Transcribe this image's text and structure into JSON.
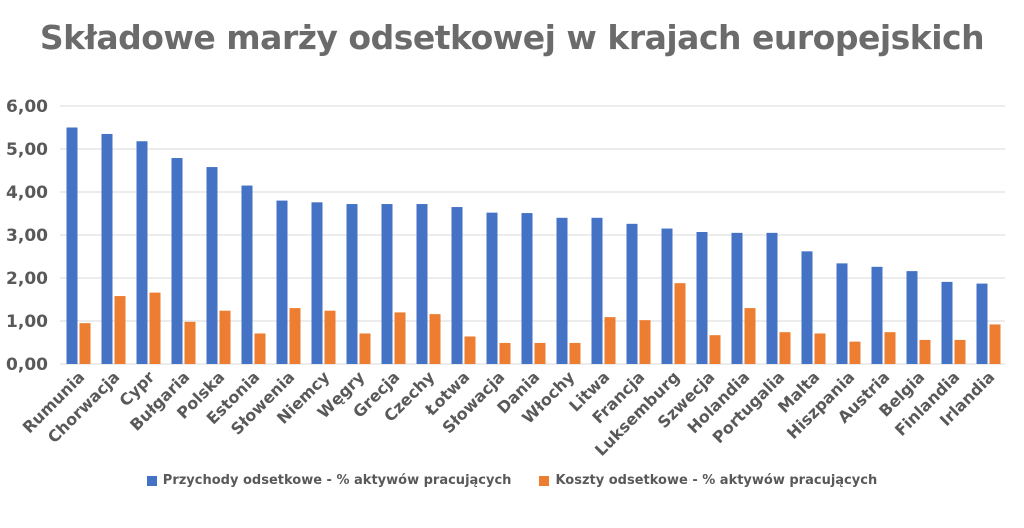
{
  "chart_data": {
    "type": "bar",
    "title": "Składowe marży odsetkowej w krajach europejskich",
    "categories": [
      "Rumunia",
      "Chorwacja",
      "Cypr",
      "Bułgaria",
      "Polska",
      "Estonia",
      "Słowenia",
      "Niemcy",
      "Węgry",
      "Grecja",
      "Czechy",
      "Łotwa",
      "Słowacja",
      "Dania",
      "Włochy",
      "Litwa",
      "Francja",
      "Luksemburg",
      "Szwecja",
      "Holandia",
      "Portugalia",
      "Malta",
      "Hiszpania",
      "Austria",
      "Belgia",
      "Finlandia",
      "Irlandia"
    ],
    "series": [
      {
        "name": "Przychody odsetkowe - % aktywów pracujących",
        "color": "#4472c4",
        "values": [
          5.5,
          5.35,
          5.18,
          4.79,
          4.58,
          4.15,
          3.8,
          3.76,
          3.72,
          3.72,
          3.72,
          3.65,
          3.52,
          3.51,
          3.4,
          3.4,
          3.26,
          3.15,
          3.07,
          3.05,
          3.05,
          2.62,
          2.34,
          2.26,
          2.16,
          1.91,
          1.87
        ]
      },
      {
        "name": "Koszty odsetkowe - % aktywów pracujących",
        "color": "#ed7d31",
        "values": [
          0.95,
          1.58,
          1.66,
          0.98,
          1.24,
          0.71,
          1.3,
          1.24,
          0.71,
          1.2,
          1.16,
          0.64,
          0.49,
          0.49,
          0.49,
          1.09,
          1.02,
          1.88,
          0.67,
          1.3,
          0.74,
          0.71,
          0.52,
          0.74,
          0.56,
          0.56,
          0.92
        ]
      }
    ],
    "ylim": [
      0,
      6
    ],
    "yticks": [
      "0,00",
      "1,00",
      "2,00",
      "3,00",
      "4,00",
      "5,00",
      "6,00"
    ],
    "grid": true,
    "legend_position": "bottom"
  }
}
